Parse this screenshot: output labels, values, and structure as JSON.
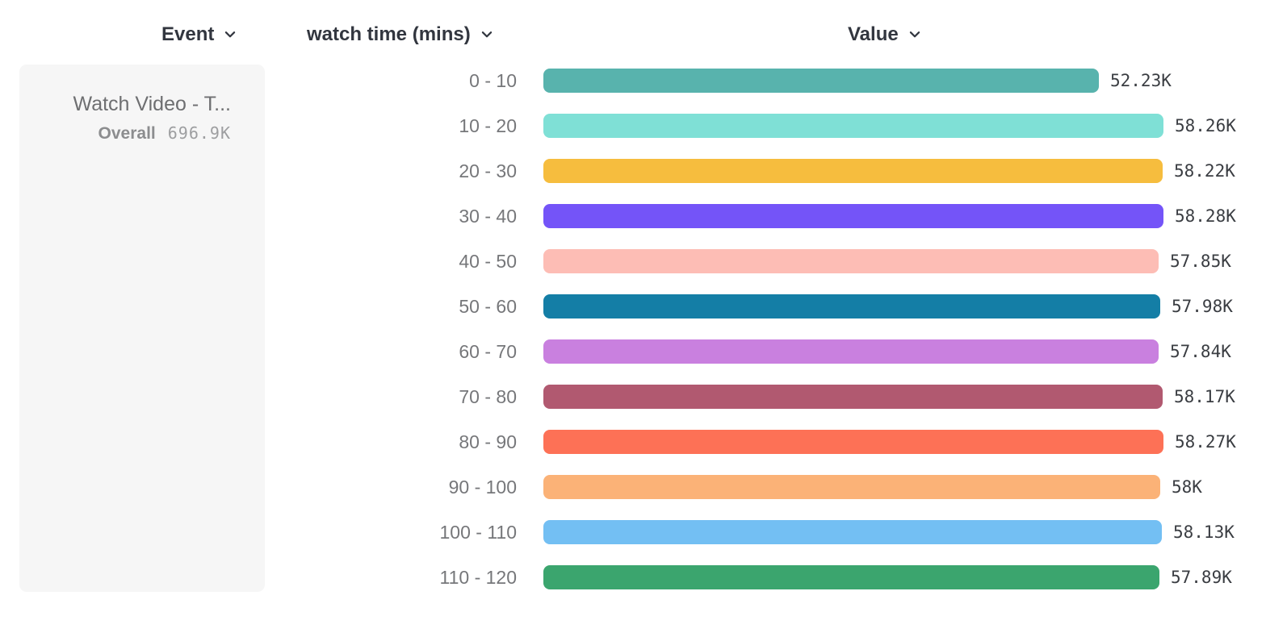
{
  "header": {
    "event_label": "Event",
    "breakdown_label": "watch time (mins)",
    "value_label": "Value"
  },
  "legend": {
    "event_name": "Watch Video - T...",
    "overall_label": "Overall",
    "overall_value": "696.9K"
  },
  "icons": {
    "dropdown": "chevron-down"
  },
  "colors": {
    "header_text": "#32363f",
    "category_text": "#76777a",
    "value_text": "#3a3d42",
    "card_bg": "#f6f6f6"
  },
  "chart_data": {
    "type": "bar",
    "orientation": "horizontal",
    "title": "",
    "xlabel": "Value",
    "ylabel": "watch time (mins)",
    "unit": "K",
    "value_axis_range": [
      0,
      58.28
    ],
    "grid": false,
    "legend_position": "left",
    "categories": [
      "0 - 10",
      "10 - 20",
      "20 - 30",
      "30 - 40",
      "40 - 50",
      "50 - 60",
      "60 - 70",
      "70 - 80",
      "80 - 90",
      "90 - 100",
      "100 - 110",
      "110 - 120"
    ],
    "values": [
      52.23,
      58.26,
      58.22,
      58.28,
      57.85,
      57.98,
      57.84,
      58.17,
      58.27,
      58.0,
      58.13,
      57.89
    ],
    "value_labels": [
      "52.23K",
      "58.26K",
      "58.22K",
      "58.28K",
      "57.85K",
      "57.98K",
      "57.84K",
      "58.17K",
      "58.27K",
      "58K",
      "58.13K",
      "57.89K"
    ],
    "colors": [
      "#58b3ad",
      "#7fe0d6",
      "#f6bd3e",
      "#7454f8",
      "#fdbdb5",
      "#147ea6",
      "#c980df",
      "#b15970",
      "#fd7156",
      "#fbb277",
      "#73bff3",
      "#3ba56e"
    ]
  }
}
